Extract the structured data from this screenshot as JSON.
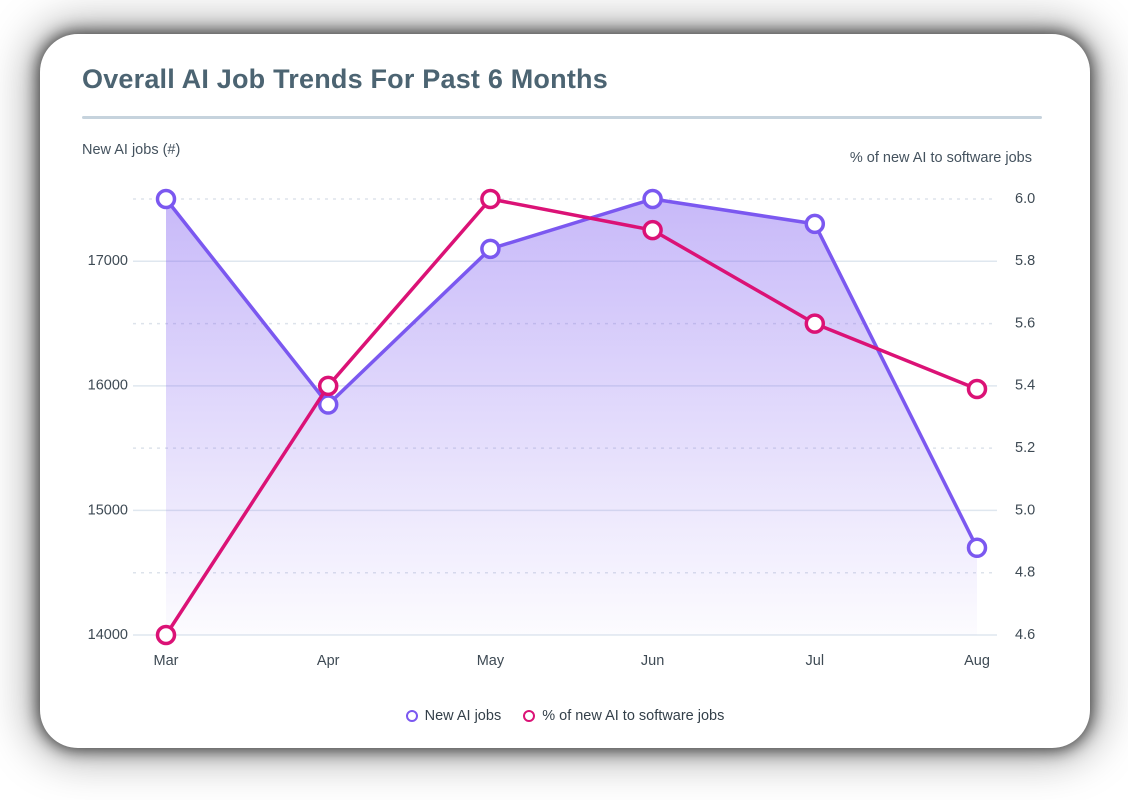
{
  "chart_data": {
    "type": "line",
    "title": "Overall AI Job Trends For Past 6 Months",
    "categories": [
      "Mar",
      "Apr",
      "May",
      "Jun",
      "Jul",
      "Aug"
    ],
    "series": [
      {
        "name": "New AI jobs",
        "axis": "left",
        "color": "#7b58f0",
        "area": true,
        "marker": "circle",
        "values": [
          17500,
          15850,
          17100,
          17500,
          17300,
          14700
        ]
      },
      {
        "name": "% of new AI to software jobs",
        "axis": "right",
        "color": "#db1276",
        "area": false,
        "marker": "circle",
        "values": [
          4.6,
          5.4,
          6.0,
          5.9,
          5.6,
          5.39
        ]
      }
    ],
    "left_axis": {
      "label": "New AI jobs (#)",
      "ticks": [
        14000,
        15000,
        16000,
        17000
      ],
      "range": [
        14000,
        17500
      ]
    },
    "right_axis": {
      "label": "% of new AI to software jobs",
      "ticks": [
        4.6,
        4.8,
        5.0,
        5.2,
        5.4,
        5.6,
        5.8,
        6.0
      ],
      "range": [
        4.6,
        6.0
      ]
    },
    "grid": {
      "solid_color": "#dfe7ef",
      "dashed_color": "#dde3eb",
      "dashed_pattern": "3 5"
    },
    "legend_position": "bottom",
    "area_fade_top_opacity": 0.42,
    "area_fade_bottom_opacity": 0.02
  }
}
